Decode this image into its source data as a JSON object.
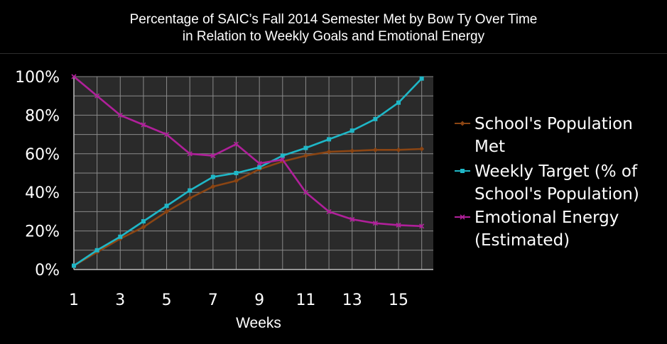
{
  "chart_data": {
    "type": "line",
    "title": "Percentage of SAIC’s Fall 2014 Semester Met by Bow Ty Over Time",
    "subtitle": "in Relation to Weekly Goals and Emotional Energy",
    "xlabel": "Weeks",
    "ylabel": "",
    "x": [
      1,
      2,
      3,
      4,
      5,
      6,
      7,
      8,
      9,
      10,
      11,
      12,
      13,
      14,
      15,
      16
    ],
    "xlim": [
      1,
      16.5
    ],
    "ylim": [
      0,
      100
    ],
    "x_ticks": [
      "1",
      "3",
      "5",
      "7",
      "9",
      "11",
      "13",
      "15"
    ],
    "x_tick_values": [
      1,
      3,
      5,
      7,
      9,
      11,
      13,
      15
    ],
    "y_ticks": [
      "0%",
      "20%",
      "40%",
      "60%",
      "80%",
      "100%"
    ],
    "y_tick_values": [
      0,
      20,
      40,
      60,
      80,
      100
    ],
    "grid": true,
    "legend_position": "right",
    "series": [
      {
        "name": "School's Population Met",
        "legend_lines": [
          "School's Population",
          "Met"
        ],
        "color": "#8b4513",
        "marker": "diamond",
        "values": [
          2,
          9,
          16,
          22,
          30,
          37,
          43,
          46,
          52,
          56,
          59,
          61,
          61.5,
          62,
          62,
          62.5
        ]
      },
      {
        "name": "Weekly Target (% of School's Population)",
        "legend_lines": [
          "Weekly Target (% of",
          "School's Population)"
        ],
        "color": "#1fb7c7",
        "marker": "square",
        "values": [
          2,
          10,
          17,
          25,
          33,
          41,
          48,
          50,
          53,
          59,
          63,
          67.5,
          72,
          78,
          86.5,
          99
        ]
      },
      {
        "name": "Emotional Energy (Estimated)",
        "legend_lines": [
          "Emotional Energy",
          "(Estimated)"
        ],
        "color": "#b0209a",
        "marker": "x",
        "values": [
          100,
          90,
          80,
          75,
          70,
          60,
          59,
          65,
          55,
          57,
          40,
          30,
          26,
          24,
          23,
          22.5
        ]
      }
    ]
  }
}
